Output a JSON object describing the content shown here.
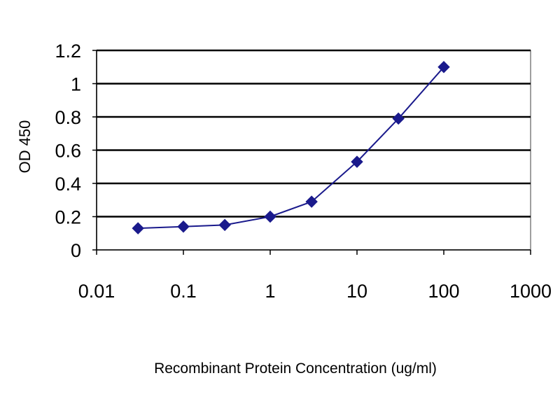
{
  "chart_data": {
    "type": "line",
    "title": "",
    "xlabel": "Recombinant Protein Concentration (ug/ml)",
    "ylabel": "OD 450",
    "xscale": "log",
    "xlim": [
      0.01,
      1000
    ],
    "ylim": [
      0,
      1.2
    ],
    "x_ticks": [
      "0.01",
      "0.1",
      "1",
      "10",
      "100",
      "1000"
    ],
    "y_ticks": [
      "0",
      "0.2",
      "0.4",
      "0.6",
      "0.8",
      "1",
      "1.2"
    ],
    "grid": "horizontal",
    "legend": "none",
    "marker": "diamond",
    "color": "#1a1a8c",
    "series": [
      {
        "x": [
          0.03,
          0.1,
          0.3,
          1,
          3,
          10,
          30,
          100
        ],
        "y": [
          0.13,
          0.14,
          0.15,
          0.2,
          0.29,
          0.53,
          0.79,
          1.1
        ]
      }
    ]
  }
}
